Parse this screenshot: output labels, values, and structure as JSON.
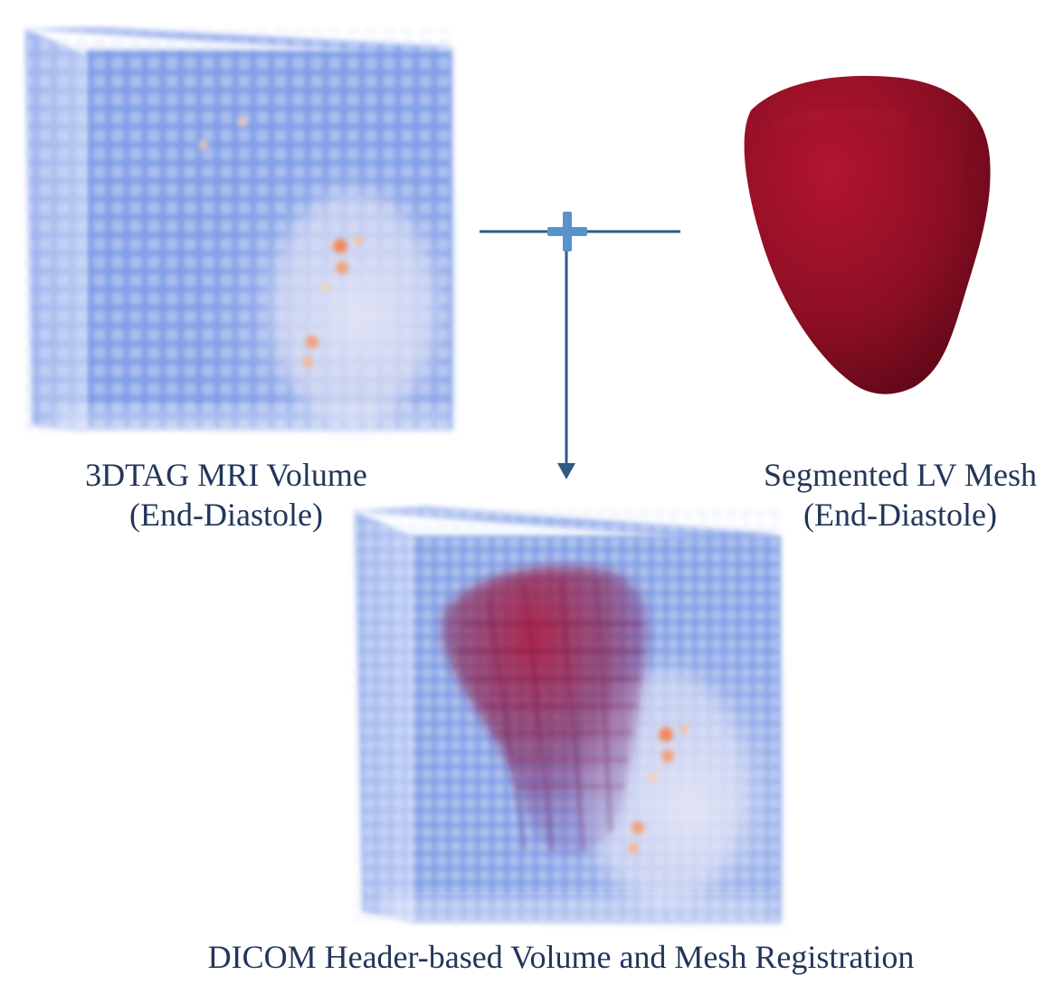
{
  "labels": {
    "mri_volume": [
      "3DTAG MRI Volume",
      "(End-Diastole)"
    ],
    "lv_mesh": [
      "Segmented LV Mesh",
      "(End-Diastole)"
    ],
    "registration": "DICOM Header-based Volume and Mesh Registration"
  },
  "colors": {
    "volume_blue": "#7f9de6",
    "volume_light": "#c9d6f4",
    "hot_spot": "#f08a5a",
    "mesh_red": "#8e0f24",
    "arrow": "#2f5a84",
    "plus_sign": "#5a93cc",
    "text": "#22365a"
  },
  "icons": [
    "plus-icon",
    "down-arrow-icon"
  ]
}
